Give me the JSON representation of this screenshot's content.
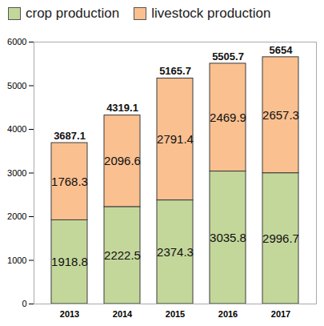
{
  "chart_data": {
    "type": "bar",
    "stacked": true,
    "categories": [
      "2013",
      "2014",
      "2015",
      "2016",
      "2017"
    ],
    "series": [
      {
        "name": "crop production",
        "color": "#c4d79b",
        "values": [
          1918.8,
          2222.5,
          2374.3,
          3035.8,
          2996.7
        ]
      },
      {
        "name": "livestock production",
        "color": "#fac090",
        "values": [
          1768.3,
          2096.6,
          2791.4,
          2469.9,
          2657.3
        ]
      }
    ],
    "totals": [
      3687.1,
      4319.1,
      5165.7,
      5505.7,
      5654
    ],
    "ylim": [
      0,
      6000
    ],
    "yticks": [
      0,
      1000,
      2000,
      3000,
      4000,
      5000,
      6000
    ],
    "grid": false,
    "legend": "top",
    "data_labels": true
  }
}
